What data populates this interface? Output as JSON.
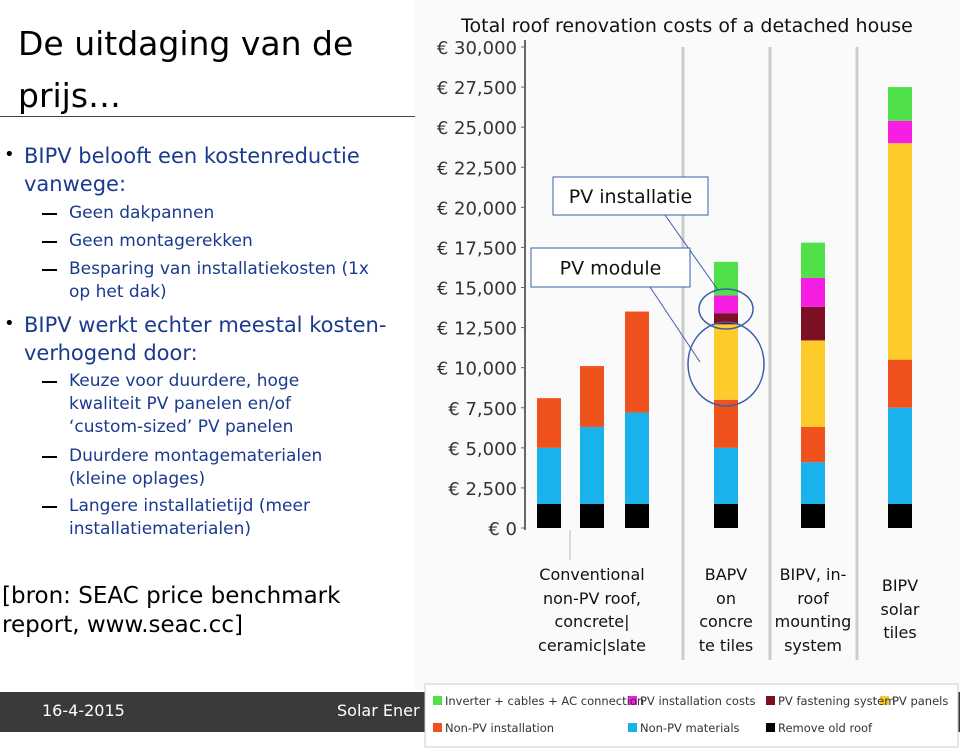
{
  "slide": {
    "title": "De uitdaging van de prijs…",
    "bullets": [
      {
        "text": "BIPV belooft een kostenreductie vanwege:",
        "items": [
          "Geen dakpannen",
          "Geen montagerekken",
          "Besparing van installatiekosten (1x op het dak)"
        ]
      },
      {
        "text": "BIPV werkt echter meestal kosten-verhogend door:",
        "items": [
          "Keuze voor duurdere, hoge kwaliteit PV panelen en/of ‘custom-sized’ PV panelen",
          "Duurdere montagematerialen (kleine oplages)",
          "Langere installatietijd (meer installatiematerialen)"
        ]
      }
    ],
    "source": "[bron: SEAC price benchmark report, www.seac.cc]",
    "footer": {
      "date": "16-4-2015",
      "text": "Solar Ener"
    }
  },
  "chart_data": {
    "type": "stacked_bar",
    "title": "Total roof renovation costs of a detached house",
    "categories": [
      null,
      "Conventional\nnon-PV roof,\nconcrete|\nceramic|slate",
      null,
      "BAPV\non\nconcre\nte tiles",
      "BIPV, in-\nroof\nmounting\nsystem",
      "BIPV\nsolar\ntiles"
    ],
    "series": [
      {
        "name": "Remove old roof",
        "color": "#000000",
        "values": [
          1500,
          1500,
          1500,
          1500,
          1500,
          1500
        ]
      },
      {
        "name": "Non-PV materials",
        "color": "#1ab2ec",
        "values": [
          3500,
          4800,
          5700,
          3500,
          2600,
          6000
        ]
      },
      {
        "name": "Non-PV installation",
        "color": "#f0521e",
        "values": [
          3100,
          3800,
          6300,
          3000,
          2200,
          3000
        ]
      },
      {
        "name": "PV panels",
        "color": "#fdcc2a",
        "values": [
          0,
          0,
          0,
          4700,
          5400,
          13500
        ]
      },
      {
        "name": "PV fastening system",
        "color": "#7d1025",
        "values": [
          0,
          0,
          0,
          700,
          2100,
          0
        ]
      },
      {
        "name": "PV installation costs",
        "color": "#f71ee3",
        "values": [
          0,
          0,
          0,
          1100,
          1800,
          1400
        ]
      },
      {
        "name": "Inverter + cables + AC connection",
        "color": "#4fe04a",
        "values": [
          0,
          0,
          0,
          2100,
          2200,
          2100
        ]
      }
    ],
    "ylim": [
      0,
      30000
    ],
    "yticks": [
      {
        "value": 0,
        "label": "€ 0"
      },
      {
        "value": 2500,
        "label": "€ 2,500"
      },
      {
        "value": 5000,
        "label": "€ 5,000"
      },
      {
        "value": 7500,
        "label": "€ 7,500"
      },
      {
        "value": 10000,
        "label": "€ 10,000"
      },
      {
        "value": 12500,
        "label": "€ 12,500"
      },
      {
        "value": 15000,
        "label": "€ 15,000"
      },
      {
        "value": 17500,
        "label": "€ 17,500"
      },
      {
        "value": 20000,
        "label": "€ 20,000"
      },
      {
        "value": 22500,
        "label": "€ 22,500"
      },
      {
        "value": 25000,
        "label": "€ 25,000"
      },
      {
        "value": 27500,
        "label": "€ 27,500"
      },
      {
        "value": 30000,
        "label": "€ 30,000"
      }
    ],
    "annotations": [
      "PV installatie",
      "PV module"
    ]
  }
}
